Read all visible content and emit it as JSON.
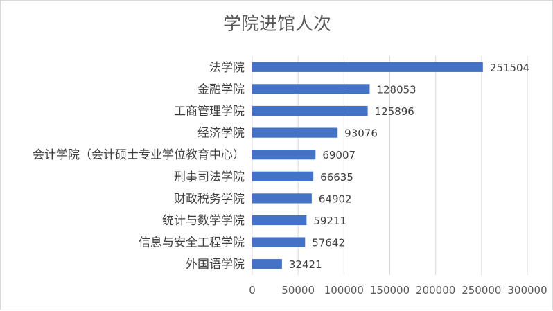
{
  "chart_data": {
    "type": "bar",
    "orientation": "horizontal",
    "title": "学院进馆人次",
    "categories": [
      "法学院",
      "金融学院",
      "工商管理学院",
      "经济学院",
      "会计学院（会计硕士专业学位教育中心）",
      "刑事司法学院",
      "财政税务学院",
      "统计与数学学院",
      "信息与安全工程学院",
      "外国语学院"
    ],
    "values": [
      251504,
      128053,
      125896,
      93076,
      69007,
      66635,
      64902,
      59211,
      57642,
      32421
    ],
    "xlim": [
      0,
      300000
    ],
    "xticks": [
      0,
      50000,
      100000,
      150000,
      200000,
      250000,
      300000
    ],
    "xtick_labels": [
      "0",
      "50000",
      "100000",
      "150000",
      "200000",
      "250000",
      "300000"
    ],
    "grid": true,
    "legend": "none",
    "bar_color": "#4472c4"
  }
}
